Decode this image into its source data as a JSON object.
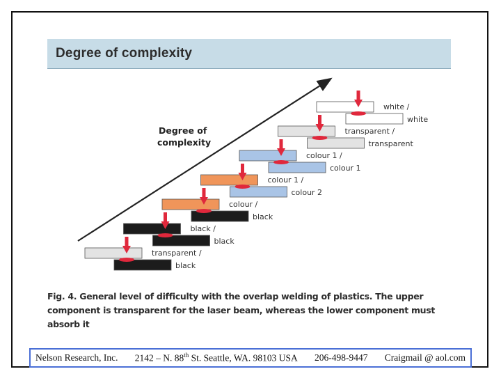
{
  "figure": {
    "title": "Degree of complexity",
    "axis_label_line1": "Degree of",
    "axis_label_line2": "complexity",
    "caption": "Fig. 4. General level of difficulty with the overlap welding of plastics. The upper component is transparent for the laser beam, whereas the lower component must absorb it",
    "steps": [
      {
        "upper_label": "transparent /",
        "lower_label": "black",
        "upper_color": "#e3e3e3",
        "lower_color": "#1c1c1c"
      },
      {
        "upper_label": "black /",
        "lower_label": "black",
        "upper_color": "#1c1c1c",
        "lower_color": "#1c1c1c"
      },
      {
        "upper_label": "colour /",
        "lower_label": "black",
        "upper_color": "#f0955a",
        "lower_color": "#1c1c1c"
      },
      {
        "upper_label": "colour 1 /",
        "lower_label": "colour 2",
        "upper_color": "#f0955a",
        "lower_color": "#a9c4e6"
      },
      {
        "upper_label": "colour 1 /",
        "lower_label": "colour 1",
        "upper_color": "#a9c4e6",
        "lower_color": "#a9c4e6"
      },
      {
        "upper_label": "transparent /",
        "lower_label": "transparent",
        "upper_color": "#e3e3e3",
        "lower_color": "#e3e3e3"
      },
      {
        "upper_label": "white /",
        "lower_label": "white",
        "upper_color": "#ffffff",
        "lower_color": "#ffffff"
      }
    ],
    "colors": {
      "header_bg": "#c7dce7",
      "laser": "#e0283c",
      "arrow": "#222222"
    }
  },
  "footer": {
    "company": "Nelson Research, Inc.",
    "address_pre": "2142 –  N. 88",
    "address_sup": "th",
    "address_post": " St. Seattle, WA. 98103  USA",
    "phone": "206-498-9447",
    "email": "Craigmail @ aol.com"
  }
}
